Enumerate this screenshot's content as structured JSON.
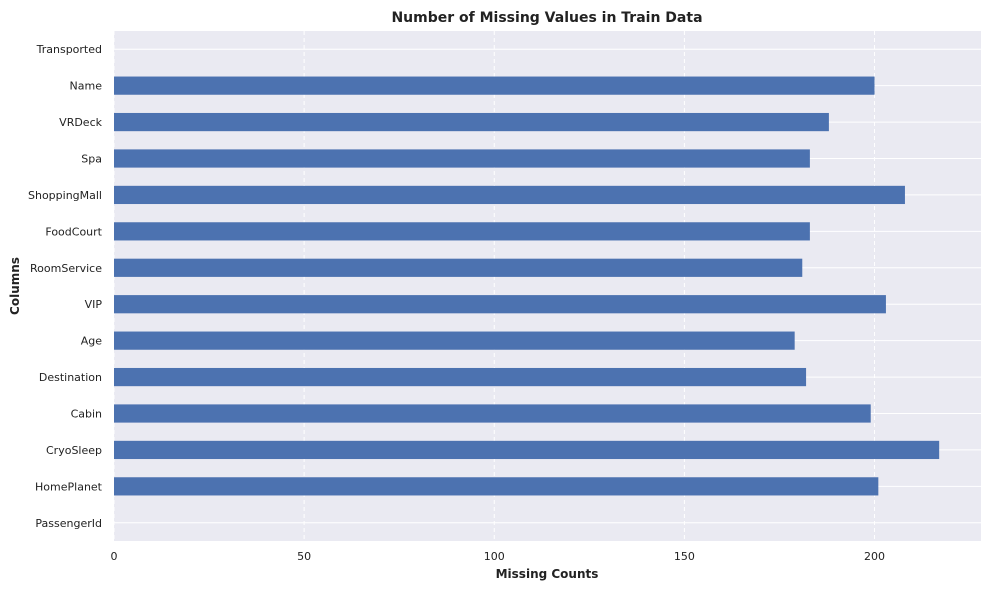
{
  "chart_data": {
    "type": "bar",
    "orientation": "horizontal",
    "title": "Number of Missing Values in Train Data",
    "xlabel": "Missing Counts",
    "ylabel": "Columns",
    "categories": [
      "PassengerId",
      "HomePlanet",
      "CryoSleep",
      "Cabin",
      "Destination",
      "Age",
      "VIP",
      "RoomService",
      "FoodCourt",
      "ShoppingMall",
      "Spa",
      "VRDeck",
      "Name",
      "Transported"
    ],
    "values": [
      0,
      201,
      217,
      199,
      182,
      179,
      203,
      181,
      183,
      208,
      183,
      188,
      200,
      0
    ],
    "xlim": [
      0,
      228
    ],
    "xticks": [
      0,
      50,
      100,
      150,
      200
    ],
    "grid": true,
    "bar_color": "#4c72b0",
    "background_color": "#eaeaf2"
  }
}
